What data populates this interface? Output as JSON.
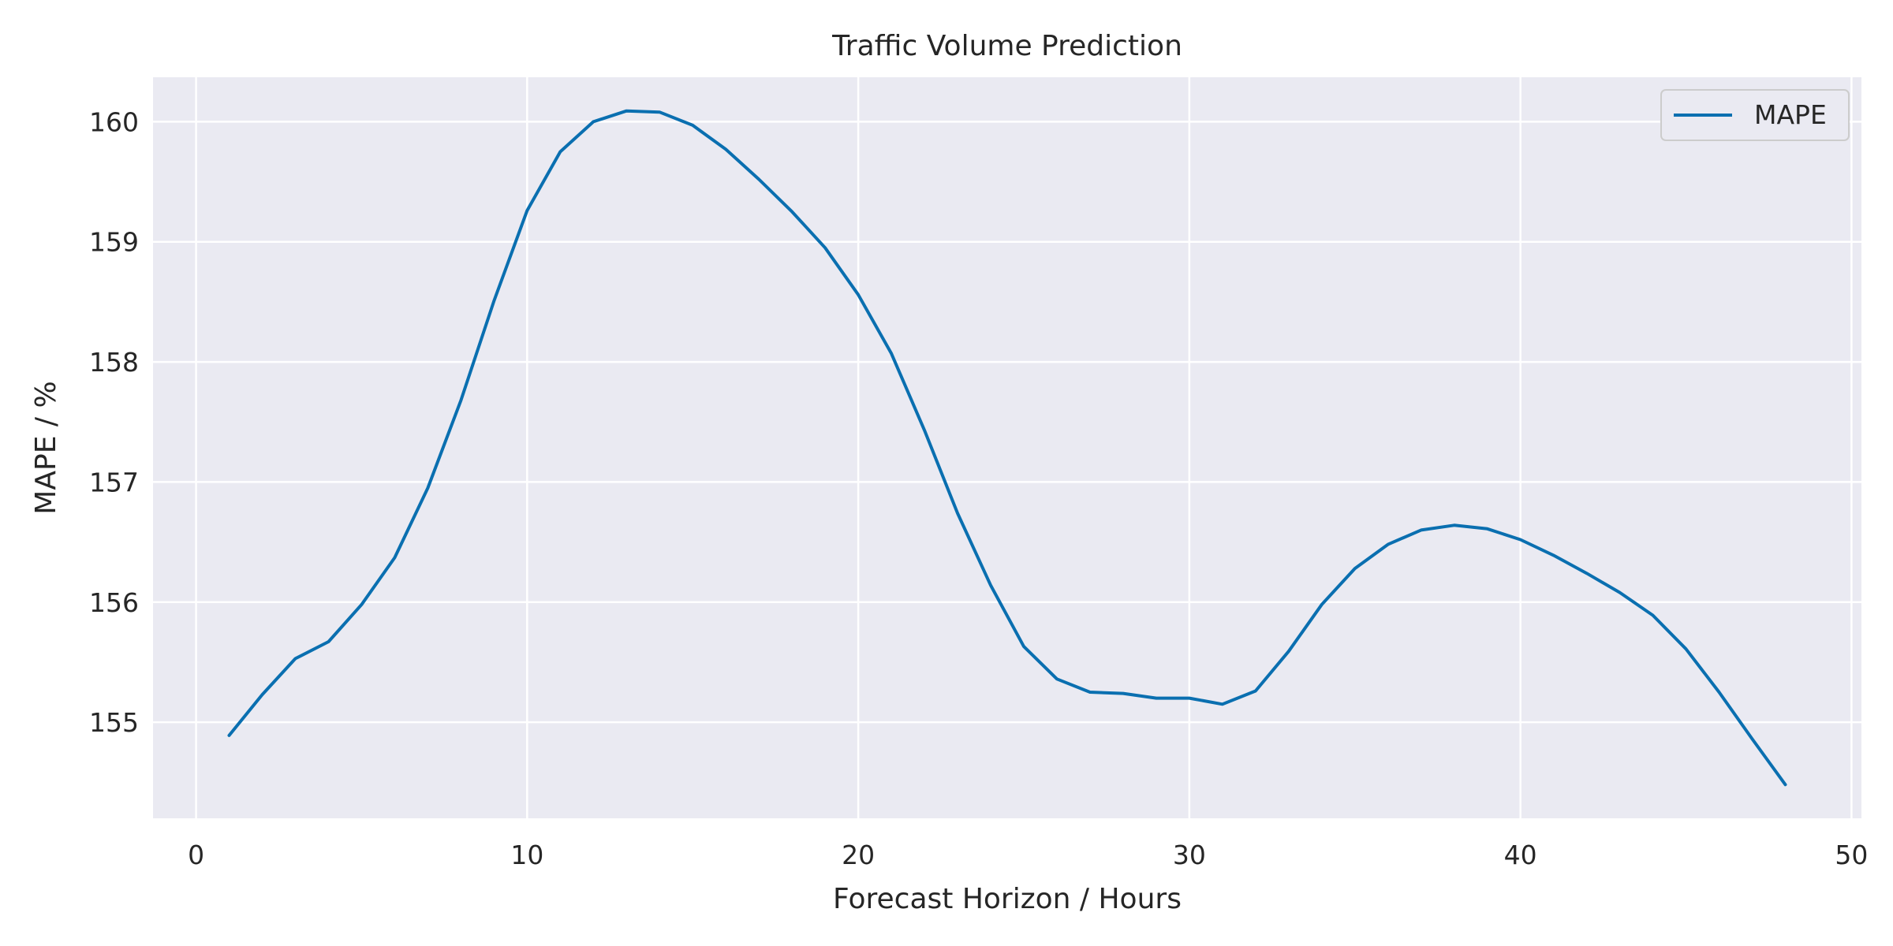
{
  "chart_data": {
    "type": "line",
    "title": "Traffic Volume Prediction",
    "xlabel": "Forecast Horizon / Hours",
    "ylabel": "MAPE / %",
    "xlim": [
      -1.3,
      50.3
    ],
    "ylim": [
      154.2,
      160.37
    ],
    "xticks": [
      0,
      10,
      20,
      30,
      40,
      50
    ],
    "yticks": [
      155,
      156,
      157,
      158,
      159,
      160
    ],
    "grid": true,
    "legend": "top-right",
    "series": [
      {
        "name": "MAPE",
        "color": "#0a6fb0",
        "x": [
          1,
          2,
          3,
          4,
          5,
          6,
          7,
          8,
          9,
          10,
          11,
          12,
          13,
          14,
          15,
          16,
          17,
          18,
          19,
          20,
          21,
          22,
          23,
          24,
          25,
          26,
          27,
          28,
          29,
          30,
          31,
          32,
          33,
          34,
          35,
          36,
          37,
          38,
          39,
          40,
          41,
          42,
          43,
          44,
          45,
          46,
          47,
          48
        ],
        "y": [
          154.89,
          155.23,
          155.53,
          155.67,
          155.98,
          156.37,
          156.95,
          157.68,
          158.51,
          159.26,
          159.75,
          160.0,
          160.09,
          160.08,
          159.97,
          159.77,
          159.52,
          159.25,
          158.95,
          158.56,
          158.07,
          157.43,
          156.74,
          156.14,
          155.63,
          155.36,
          155.25,
          155.24,
          155.2,
          155.2,
          155.15,
          155.26,
          155.59,
          155.98,
          156.28,
          156.48,
          156.6,
          156.64,
          156.61,
          156.52,
          156.39,
          156.24,
          156.08,
          155.89,
          155.61,
          155.25,
          154.86,
          154.48
        ]
      }
    ]
  }
}
